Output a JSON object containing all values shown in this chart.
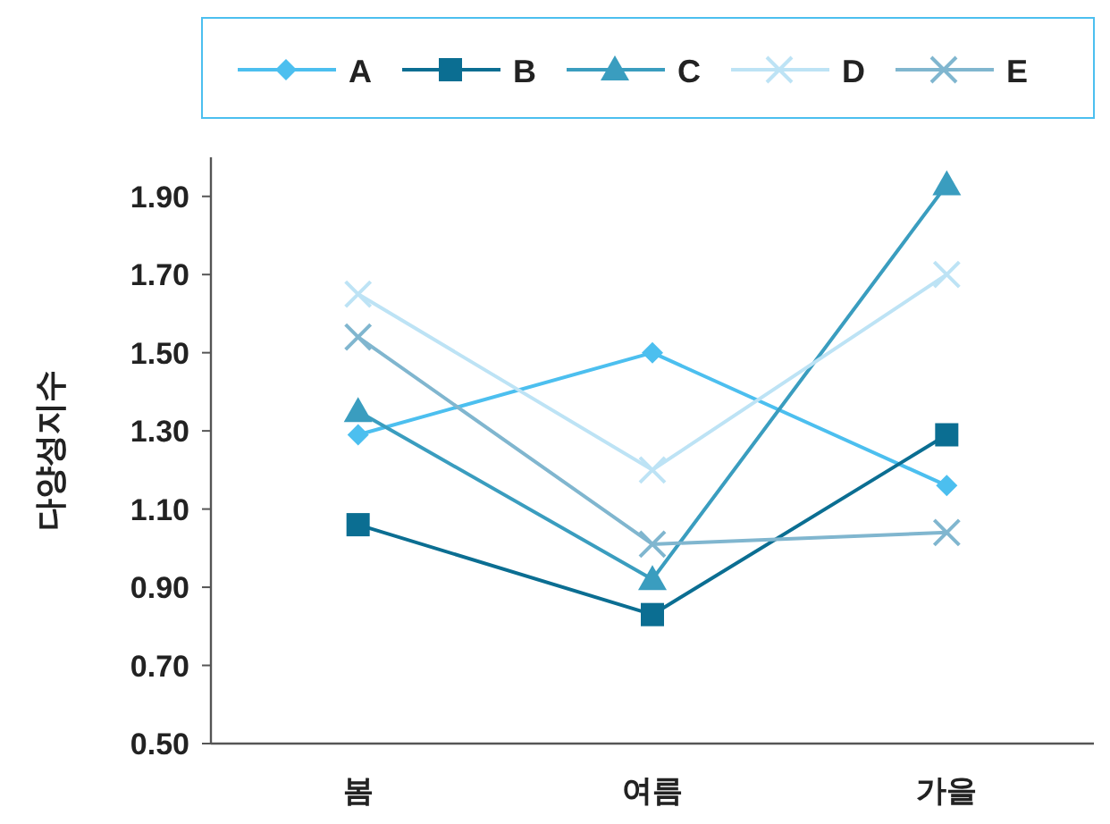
{
  "chart_data": {
    "type": "line",
    "ylabel": "다양성지수",
    "categories": [
      "봄",
      "여름",
      "가을"
    ],
    "ylim": [
      0.5,
      2.0
    ],
    "yticks": [
      {
        "value": 0.5,
        "label": "0.50"
      },
      {
        "value": 0.7,
        "label": "0.70"
      },
      {
        "value": 0.9,
        "label": "0.90"
      },
      {
        "value": 1.1,
        "label": "1.10"
      },
      {
        "value": 1.3,
        "label": "1.30"
      },
      {
        "value": 1.5,
        "label": "1.50"
      },
      {
        "value": 1.7,
        "label": "1.70"
      },
      {
        "value": 1.9,
        "label": "1.90"
      }
    ],
    "legend": "top",
    "grid": false,
    "series": [
      {
        "name": "A",
        "color": "#4cbfef",
        "marker": "diamond",
        "values": [
          1.29,
          1.5,
          1.16
        ]
      },
      {
        "name": "B",
        "color": "#0b6e92",
        "marker": "square",
        "values": [
          1.06,
          0.83,
          1.29
        ]
      },
      {
        "name": "C",
        "color": "#3a9dbf",
        "marker": "triangle",
        "values": [
          1.35,
          0.92,
          1.93
        ]
      },
      {
        "name": "D",
        "color": "#bde3f5",
        "marker": "cross",
        "values": [
          1.65,
          1.2,
          1.7
        ]
      },
      {
        "name": "E",
        "color": "#80b6cf",
        "marker": "cross",
        "values": [
          1.54,
          1.01,
          1.04
        ]
      }
    ]
  }
}
